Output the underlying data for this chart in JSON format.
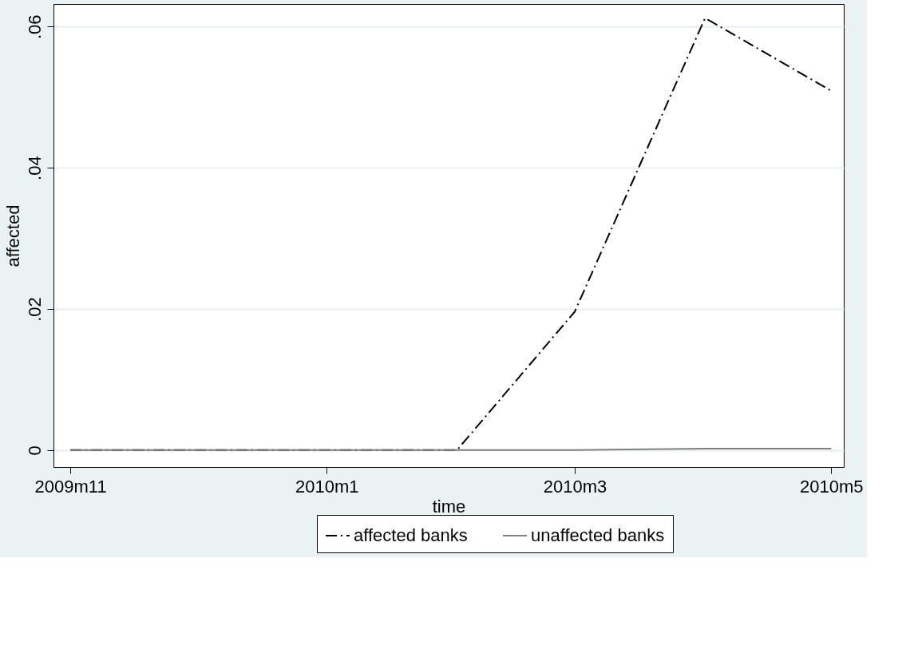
{
  "chart_data": {
    "type": "line",
    "xlabel": "time",
    "ylabel": "affected",
    "x": [
      "2009-11",
      "2009-12",
      "2010-01",
      "2010-02",
      "2010-03",
      "2010-04",
      "2010-05"
    ],
    "series": [
      {
        "name": "affected banks",
        "color": "#000000",
        "line_style": "dashed",
        "values": [
          0,
          0,
          0,
          0,
          0.0196,
          0.0612,
          0.0509
        ]
      },
      {
        "name": "unaffected banks",
        "color": "#808080",
        "line_style": "solid",
        "values": [
          0,
          0,
          0,
          0,
          0,
          0.0002,
          0.0002
        ]
      }
    ],
    "xlim": [
      "2009-10-28",
      "2010-05-04"
    ],
    "xticks": [
      {
        "value": "2009-11",
        "label": "2009m11"
      },
      {
        "value": "2010-01",
        "label": "2010m1"
      },
      {
        "value": "2010-03",
        "label": "2010m3"
      },
      {
        "value": "2010-05",
        "label": "2010m5"
      }
    ],
    "ylim": [
      -0.0024,
      0.0632
    ],
    "yticks": [
      {
        "value": 0,
        "label": "0"
      },
      {
        "value": 0.02,
        "label": ".02"
      },
      {
        "value": 0.04,
        "label": ".04"
      },
      {
        "value": 0.06,
        "label": ".06"
      }
    ],
    "grid": "y",
    "legend": "bottom",
    "marker": "none"
  }
}
